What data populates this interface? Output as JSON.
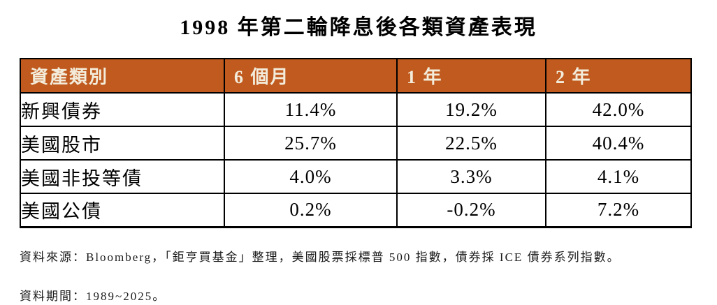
{
  "chart_data": {
    "type": "table",
    "title": "1998 年第二輪降息後各類資產表現",
    "columns": [
      "資產類別",
      "6 個月",
      "1 年",
      "2 年"
    ],
    "rows": [
      {
        "label": "新興債券",
        "values": [
          "11.4%",
          "19.2%",
          "42.0%"
        ],
        "values_numeric": [
          11.4,
          19.2,
          42.0
        ]
      },
      {
        "label": "美國股市",
        "values": [
          "25.7%",
          "22.5%",
          "40.4%"
        ],
        "values_numeric": [
          25.7,
          22.5,
          40.4
        ]
      },
      {
        "label": "美國非投等債",
        "values": [
          "4.0%",
          "3.3%",
          "4.1%"
        ],
        "values_numeric": [
          4.0,
          3.3,
          4.1
        ]
      },
      {
        "label": "美國公債",
        "values": [
          "0.2%",
          "-0.2%",
          "7.2%"
        ],
        "values_numeric": [
          0.2,
          -0.2,
          7.2
        ]
      }
    ],
    "unit": "%",
    "notes": {
      "source": "資料來源：Bloomberg，「鉅亨買基金」整理，美國股票採標普 500 指數，債券採 ICE 債券系列指數。",
      "period": "資料期間：1989~2025。"
    }
  },
  "colors": {
    "header_bg": "#C05A1E",
    "header_text": "#F3ECDB",
    "border": "#000000",
    "title_text": "#000000",
    "footnote_text": "#1A1A1A"
  }
}
